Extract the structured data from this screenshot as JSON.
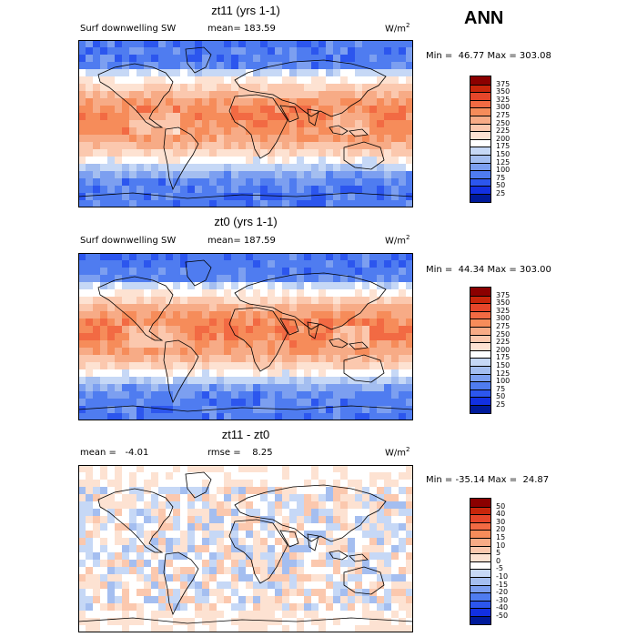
{
  "season": "ANN",
  "units_label": "W/m",
  "units_exp": "2",
  "panels": [
    {
      "title": "zt11 (yrs 1-1)",
      "variable": "Surf downwelling SW",
      "mean_text": "mean= 183.59",
      "minmax_text": "Min =  46.77 Max = 303.08",
      "levels": [
        "375",
        "350",
        "325",
        "300",
        "275",
        "250",
        "225",
        "200",
        "175",
        "150",
        "125",
        "100",
        "75",
        "50",
        "25"
      ],
      "colors": [
        "#8b0000",
        "#c8260b",
        "#e6462a",
        "#f26a43",
        "#f68c5a",
        "#f7ab86",
        "#fbc8ae",
        "#fde2d2",
        "#ffffff",
        "#c6d8f6",
        "#a4bef0",
        "#7c9ff0",
        "#4f7cf0",
        "#2c56ee",
        "#1230e2",
        "#001a9a"
      ],
      "map_style": "abs"
    },
    {
      "title": "zt0 (yrs 1-1)",
      "variable": "Surf downwelling SW",
      "mean_text": "mean= 187.59",
      "minmax_text": "Min =  44.34 Max = 303.00",
      "levels": [
        "375",
        "350",
        "325",
        "300",
        "275",
        "250",
        "225",
        "200",
        "175",
        "150",
        "125",
        "100",
        "75",
        "50",
        "25"
      ],
      "colors": [
        "#8b0000",
        "#c8260b",
        "#e6462a",
        "#f26a43",
        "#f68c5a",
        "#f7ab86",
        "#fbc8ae",
        "#fde2d2",
        "#ffffff",
        "#c6d8f6",
        "#a4bef0",
        "#7c9ff0",
        "#4f7cf0",
        "#2c56ee",
        "#1230e2",
        "#001a9a"
      ],
      "map_style": "abs"
    },
    {
      "title": "zt11 - zt0",
      "mean_text": "mean =   -4.01",
      "rmse_text": "rmse =    8.25",
      "minmax_text": "Min = -35.14 Max =  24.87",
      "levels": [
        "50",
        "40",
        "30",
        "20",
        "15",
        "10",
        "5",
        "0",
        "-5",
        "-10",
        "-15",
        "-20",
        "-30",
        "-40",
        "-50"
      ],
      "colors": [
        "#8b0000",
        "#c8260b",
        "#e6462a",
        "#f26a43",
        "#f68c5a",
        "#f7ab86",
        "#fbc8ae",
        "#fde2d2",
        "#ffffff",
        "#c6d8f6",
        "#a4bef0",
        "#7c9ff0",
        "#4f7cf0",
        "#2c56ee",
        "#1230e2",
        "#001a9a"
      ],
      "map_style": "diff"
    }
  ],
  "chart_data": [
    {
      "type": "heatmap",
      "title": "zt11 (yrs 1-1)",
      "subtitle": "Surf downwelling SW",
      "units": "W/m2",
      "mean": 183.59,
      "min": 46.77,
      "max": 303.08,
      "colorbar_levels": [
        25,
        50,
        75,
        100,
        125,
        150,
        175,
        200,
        225,
        250,
        275,
        300,
        325,
        350,
        375
      ]
    },
    {
      "type": "heatmap",
      "title": "zt0 (yrs 1-1)",
      "subtitle": "Surf downwelling SW",
      "units": "W/m2",
      "mean": 187.59,
      "min": 44.34,
      "max": 303.0,
      "colorbar_levels": [
        25,
        50,
        75,
        100,
        125,
        150,
        175,
        200,
        225,
        250,
        275,
        300,
        325,
        350,
        375
      ]
    },
    {
      "type": "heatmap",
      "title": "zt11 - zt0",
      "units": "W/m2",
      "mean": -4.01,
      "rmse": 8.25,
      "min": -35.14,
      "max": 24.87,
      "colorbar_levels": [
        -50,
        -40,
        -30,
        -20,
        -15,
        -10,
        -5,
        0,
        5,
        10,
        15,
        20,
        30,
        40,
        50
      ]
    }
  ]
}
